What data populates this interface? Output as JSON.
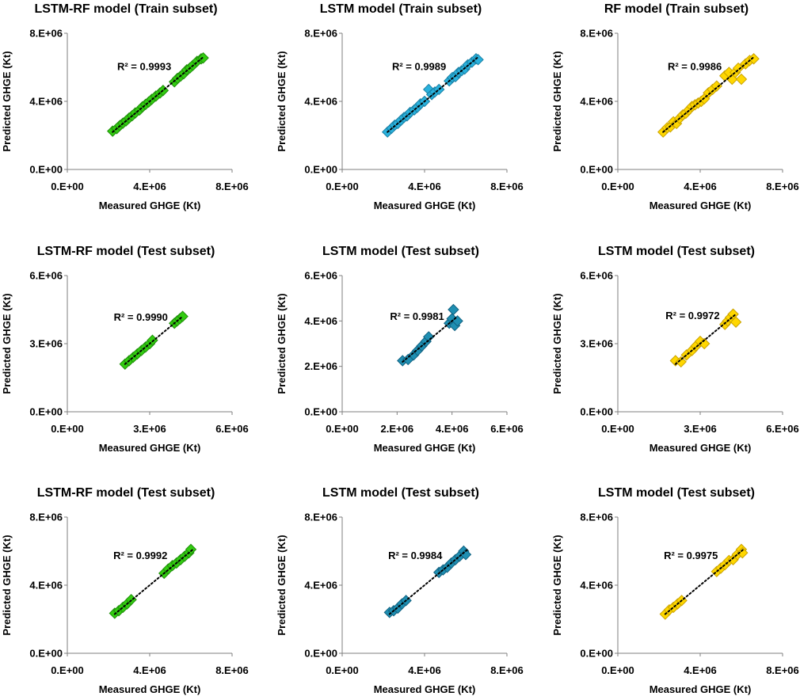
{
  "chart_data": [
    {
      "type": "scatter",
      "title": "LSTM-RF model (Train subset)",
      "xlabel": "Measured GHGE (Kt)",
      "ylabel": "Predicted GHGE (Kt)",
      "xlim": [
        0,
        8000000
      ],
      "ylim": [
        0,
        8000000
      ],
      "ticks": [
        "0.E+00",
        "4.E+06",
        "8.E+06"
      ],
      "r2_label": "R² = 0.9993",
      "color": "#33cc11",
      "edge": "#1f8f0a",
      "trendline": [
        2200000,
        6600000
      ],
      "points": [
        [
          2200000,
          2250000
        ],
        [
          2400000,
          2400000
        ],
        [
          2550000,
          2580000
        ],
        [
          2700000,
          2720000
        ],
        [
          2850000,
          2850000
        ],
        [
          3000000,
          3020000
        ],
        [
          3150000,
          3160000
        ],
        [
          3300000,
          3320000
        ],
        [
          3500000,
          3490000
        ],
        [
          3650000,
          3680000
        ],
        [
          3800000,
          3820000
        ],
        [
          3950000,
          3960000
        ],
        [
          4100000,
          4120000
        ],
        [
          4300000,
          4310000
        ],
        [
          4500000,
          4490000
        ],
        [
          4650000,
          4640000
        ],
        [
          5200000,
          5150000
        ],
        [
          5350000,
          5350000
        ],
        [
          5500000,
          5480000
        ],
        [
          5650000,
          5620000
        ],
        [
          5800000,
          5850000
        ],
        [
          5950000,
          5960000
        ],
        [
          6100000,
          6120000
        ],
        [
          6300000,
          6350000
        ],
        [
          6500000,
          6500000
        ],
        [
          6600000,
          6550000
        ]
      ]
    },
    {
      "type": "scatter",
      "title": "LSTM model (Train subset)",
      "xlabel": "Measured GHGE (Kt)",
      "ylabel": "Predicted GHGE (Kt)",
      "xlim": [
        0,
        8000000
      ],
      "ylim": [
        0,
        8000000
      ],
      "ticks": [
        "0.E+00",
        "4.E+06",
        "8.E+06"
      ],
      "r2_label": "R² = 0.9989",
      "color": "#29b1dc",
      "edge": "#1a7fa3",
      "trendline": [
        2200000,
        6600000
      ],
      "points": [
        [
          2200000,
          2200000
        ],
        [
          2400000,
          2420000
        ],
        [
          2550000,
          2600000
        ],
        [
          2700000,
          2700000
        ],
        [
          2850000,
          2880000
        ],
        [
          3000000,
          3050000
        ],
        [
          3150000,
          3150000
        ],
        [
          3300000,
          3350000
        ],
        [
          3500000,
          3500000
        ],
        [
          3650000,
          3650000
        ],
        [
          3800000,
          3850000
        ],
        [
          4000000,
          4000000
        ],
        [
          4200000,
          4700000
        ],
        [
          4350000,
          4400000
        ],
        [
          4500000,
          4550000
        ],
        [
          4700000,
          4700000
        ],
        [
          5200000,
          5200000
        ],
        [
          5350000,
          5400000
        ],
        [
          5500000,
          5450000
        ],
        [
          5650000,
          5700000
        ],
        [
          5800000,
          5800000
        ],
        [
          5950000,
          5900000
        ],
        [
          6100000,
          6150000
        ],
        [
          6300000,
          6300000
        ],
        [
          6500000,
          6500000
        ],
        [
          6600000,
          6450000
        ]
      ]
    },
    {
      "type": "scatter",
      "title": "RF model (Train subset)",
      "xlabel": "Measured GHGE (Kt)",
      "ylabel": "Predicted GHGE (Kt)",
      "xlim": [
        0,
        8000000
      ],
      "ylim": [
        0,
        8000000
      ],
      "ticks": [
        "0.E+00",
        "4.E+06",
        "8.E+06"
      ],
      "r2_label": "R² = 0.9986",
      "color": "#ffd700",
      "edge": "#c9a200",
      "trendline": [
        2200000,
        6600000
      ],
      "points": [
        [
          2200000,
          2200000
        ],
        [
          2400000,
          2450000
        ],
        [
          2550000,
          2500000
        ],
        [
          2700000,
          2800000
        ],
        [
          2850000,
          2700000
        ],
        [
          3000000,
          3000000
        ],
        [
          3150000,
          3200000
        ],
        [
          3300000,
          3300000
        ],
        [
          3450000,
          3500000
        ],
        [
          3600000,
          3700000
        ],
        [
          3750000,
          3800000
        ],
        [
          3900000,
          3900000
        ],
        [
          4050000,
          4000000
        ],
        [
          4200000,
          4150000
        ],
        [
          4400000,
          4500000
        ],
        [
          4600000,
          4700000
        ],
        [
          4800000,
          4900000
        ],
        [
          5200000,
          5500000
        ],
        [
          5400000,
          5700000
        ],
        [
          5550000,
          5300000
        ],
        [
          5700000,
          5700000
        ],
        [
          5850000,
          5950000
        ],
        [
          6000000,
          5300000
        ],
        [
          6200000,
          6200000
        ],
        [
          6400000,
          6400000
        ],
        [
          6600000,
          6500000
        ]
      ]
    },
    {
      "type": "scatter",
      "title": "LSTM-RF model (Test subset)",
      "xlabel": "Measured GHGE (Kt)",
      "ylabel": "Predicted GHGE (Kt)",
      "xlim": [
        0,
        6000000
      ],
      "ylim": [
        0,
        6000000
      ],
      "ticks": [
        "0.E+00",
        "3.E+06",
        "6.E+06"
      ],
      "r2_label": "R² = 0.9990",
      "color": "#33cc11",
      "edge": "#1f8f0a",
      "trendline": [
        2100000,
        4200000
      ],
      "points": [
        [
          2100000,
          2100000
        ],
        [
          2250000,
          2250000
        ],
        [
          2400000,
          2400000
        ],
        [
          2550000,
          2550000
        ],
        [
          2700000,
          2700000
        ],
        [
          2850000,
          2850000
        ],
        [
          3000000,
          3000000
        ],
        [
          3100000,
          3150000
        ],
        [
          3900000,
          3900000
        ],
        [
          4000000,
          4000000
        ],
        [
          4100000,
          4100000
        ],
        [
          4200000,
          4200000
        ]
      ]
    },
    {
      "type": "scatter",
      "title": "LSTM model (Test subset)",
      "xlabel": "Measured GHGE (Kt)",
      "ylabel": "Predicted GHGE (Kt)",
      "xlim": [
        0,
        6000000
      ],
      "ylim": [
        0,
        6000000
      ],
      "ticks": [
        "0.E+00",
        "2.E+06",
        "4.E+06",
        "6.E+06"
      ],
      "r2_label": "R² = 0.9981",
      "color": "#1f8fb2",
      "edge": "#116180",
      "trendline": [
        2200000,
        4200000
      ],
      "points": [
        [
          2200000,
          2250000
        ],
        [
          2400000,
          2300000
        ],
        [
          2600000,
          2500000
        ],
        [
          2750000,
          2700000
        ],
        [
          2900000,
          2900000
        ],
        [
          3050000,
          3100000
        ],
        [
          3150000,
          3300000
        ],
        [
          3900000,
          3900000
        ],
        [
          4000000,
          4100000
        ],
        [
          4050000,
          4500000
        ],
        [
          4100000,
          3800000
        ],
        [
          4200000,
          4000000
        ]
      ]
    },
    {
      "type": "scatter",
      "title": "LSTM model (Test subset)",
      "xlabel": "Measured GHGE (Kt)",
      "ylabel": "Predicted GHGE (Kt)",
      "xlim": [
        0,
        6000000
      ],
      "ylim": [
        0,
        6000000
      ],
      "ticks": [
        "0.E+00",
        "3.E+06",
        "6.E+06"
      ],
      "r2_label": "R² = 0.9972",
      "color": "#ffd700",
      "edge": "#c9a200",
      "trendline": [
        2100000,
        4300000
      ],
      "points": [
        [
          2100000,
          2250000
        ],
        [
          2300000,
          2200000
        ],
        [
          2500000,
          2500000
        ],
        [
          2700000,
          2700000
        ],
        [
          2850000,
          2900000
        ],
        [
          3000000,
          3100000
        ],
        [
          3150000,
          3000000
        ],
        [
          3900000,
          3850000
        ],
        [
          4000000,
          4000000
        ],
        [
          4100000,
          4150000
        ],
        [
          4200000,
          4300000
        ],
        [
          4300000,
          3950000
        ]
      ]
    },
    {
      "type": "scatter",
      "title": "LSTM-RF model (Test subset)",
      "xlabel": "Measured GHGE (Kt)",
      "ylabel": "Predicted GHGE (Kt)",
      "xlim": [
        0,
        8000000
      ],
      "ylim": [
        0,
        8000000
      ],
      "ticks": [
        "0.E+00",
        "4.E+06",
        "8.E+06"
      ],
      "r2_label": "R² = 0.9992",
      "color": "#33cc11",
      "edge": "#1f8f0a",
      "trendline": [
        2300000,
        6100000
      ],
      "points": [
        [
          2300000,
          2350000
        ],
        [
          2500000,
          2500000
        ],
        [
          2700000,
          2700000
        ],
        [
          2900000,
          2900000
        ],
        [
          3100000,
          3150000
        ],
        [
          4700000,
          4700000
        ],
        [
          4900000,
          4950000
        ],
        [
          5100000,
          5150000
        ],
        [
          5300000,
          5300000
        ],
        [
          5500000,
          5500000
        ],
        [
          5700000,
          5700000
        ],
        [
          5900000,
          5900000
        ],
        [
          6000000,
          6100000
        ]
      ]
    },
    {
      "type": "scatter",
      "title": "LSTM model (Test subset)",
      "xlabel": "Measured GHGE (Kt)",
      "ylabel": "Predicted GHGE (Kt)",
      "xlim": [
        0,
        8000000
      ],
      "ylim": [
        0,
        8000000
      ],
      "ticks": [
        "0.E+00",
        "4.E+06",
        "8.E+06"
      ],
      "r2_label": "R² = 0.9984",
      "color": "#1f8fb2",
      "edge": "#116180",
      "trendline": [
        2300000,
        6100000
      ],
      "points": [
        [
          2300000,
          2400000
        ],
        [
          2500000,
          2500000
        ],
        [
          2700000,
          2650000
        ],
        [
          2900000,
          2900000
        ],
        [
          3100000,
          3100000
        ],
        [
          4700000,
          4750000
        ],
        [
          4900000,
          4900000
        ],
        [
          5100000,
          5050000
        ],
        [
          5300000,
          5300000
        ],
        [
          5500000,
          5500000
        ],
        [
          5700000,
          5700000
        ],
        [
          5900000,
          6000000
        ],
        [
          6000000,
          5800000
        ]
      ]
    },
    {
      "type": "scatter",
      "title": "LSTM model (Test subset)",
      "xlabel": "Measured GHGE (Kt)",
      "ylabel": "Predicted GHGE (Kt)",
      "xlim": [
        0,
        8000000
      ],
      "ylim": [
        0,
        8000000
      ],
      "ticks": [
        "0.E+00",
        "4.E+06",
        "8.E+06"
      ],
      "r2_label": "R² = 0.9975",
      "color": "#ffd700",
      "edge": "#c9a200",
      "trendline": [
        2300000,
        6100000
      ],
      "points": [
        [
          2300000,
          2300000
        ],
        [
          2500000,
          2550000
        ],
        [
          2700000,
          2700000
        ],
        [
          2900000,
          2900000
        ],
        [
          3100000,
          3100000
        ],
        [
          4800000,
          4800000
        ],
        [
          5000000,
          5000000
        ],
        [
          5200000,
          5200000
        ],
        [
          5400000,
          5450000
        ],
        [
          5600000,
          5500000
        ],
        [
          5800000,
          5800000
        ],
        [
          6000000,
          6100000
        ],
        [
          6050000,
          5900000
        ]
      ]
    }
  ]
}
